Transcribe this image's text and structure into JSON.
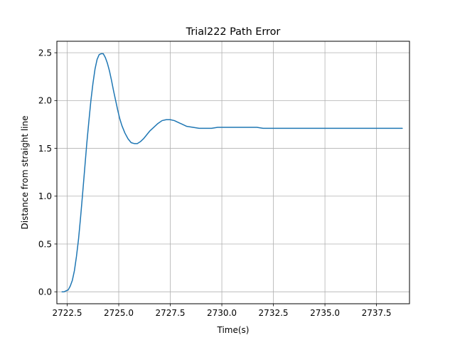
{
  "chart_data": {
    "type": "line",
    "title": "Trial222 Path Error",
    "xlabel": "Time(s)",
    "ylabel": "Distance from straight line",
    "xlim": [
      2722.0,
      2739.1
    ],
    "ylim": [
      -0.125,
      2.62
    ],
    "xticks": [
      2722.5,
      2725.0,
      2727.5,
      2730.0,
      2732.5,
      2735.0,
      2737.5
    ],
    "xtick_labels": [
      "2722.5",
      "2725.0",
      "2727.5",
      "2730.0",
      "2732.5",
      "2735.0",
      "2737.5"
    ],
    "yticks": [
      0.0,
      0.5,
      1.0,
      1.5,
      2.0,
      2.5
    ],
    "ytick_labels": [
      "0.0",
      "0.5",
      "1.0",
      "1.5",
      "2.0",
      "2.5"
    ],
    "grid": true,
    "line_color": "#1f77b4",
    "series": [
      {
        "x": [
          2722.25,
          2722.35,
          2722.45,
          2722.55,
          2722.65,
          2722.75,
          2722.85,
          2722.95,
          2723.05,
          2723.15,
          2723.25,
          2723.35,
          2723.45,
          2723.55,
          2723.65,
          2723.75,
          2723.85,
          2723.95,
          2724.05,
          2724.15,
          2724.25,
          2724.35,
          2724.45,
          2724.55,
          2724.65,
          2724.75,
          2724.85,
          2724.95,
          2725.05,
          2725.15,
          2725.3,
          2725.45,
          2725.6,
          2725.75,
          2725.9,
          2726.05,
          2726.2,
          2726.35,
          2726.5,
          2726.7,
          2726.9,
          2727.1,
          2727.3,
          2727.5,
          2727.7,
          2727.9,
          2728.1,
          2728.3,
          2728.6,
          2728.9,
          2729.2,
          2729.5,
          2729.8,
          2730.0,
          2730.3,
          2730.7,
          2731.2,
          2731.7,
          2732.0,
          2732.5,
          2733.0,
          2733.5,
          2734.0,
          2734.5,
          2735.0,
          2735.5,
          2736.0,
          2736.5,
          2737.0,
          2737.5,
          2738.0,
          2738.5,
          2738.75
        ],
        "y": [
          0.0,
          0.0,
          0.01,
          0.02,
          0.06,
          0.12,
          0.22,
          0.37,
          0.55,
          0.78,
          1.03,
          1.29,
          1.55,
          1.78,
          2.0,
          2.18,
          2.33,
          2.43,
          2.48,
          2.49,
          2.49,
          2.45,
          2.39,
          2.31,
          2.21,
          2.1,
          2.0,
          1.9,
          1.81,
          1.74,
          1.66,
          1.6,
          1.56,
          1.55,
          1.55,
          1.57,
          1.6,
          1.64,
          1.68,
          1.72,
          1.76,
          1.79,
          1.8,
          1.8,
          1.79,
          1.77,
          1.75,
          1.73,
          1.72,
          1.71,
          1.71,
          1.71,
          1.72,
          1.72,
          1.72,
          1.72,
          1.72,
          1.72,
          1.71,
          1.71,
          1.71,
          1.71,
          1.71,
          1.71,
          1.71,
          1.71,
          1.71,
          1.71,
          1.71,
          1.71,
          1.71,
          1.71,
          1.71
        ]
      }
    ]
  }
}
